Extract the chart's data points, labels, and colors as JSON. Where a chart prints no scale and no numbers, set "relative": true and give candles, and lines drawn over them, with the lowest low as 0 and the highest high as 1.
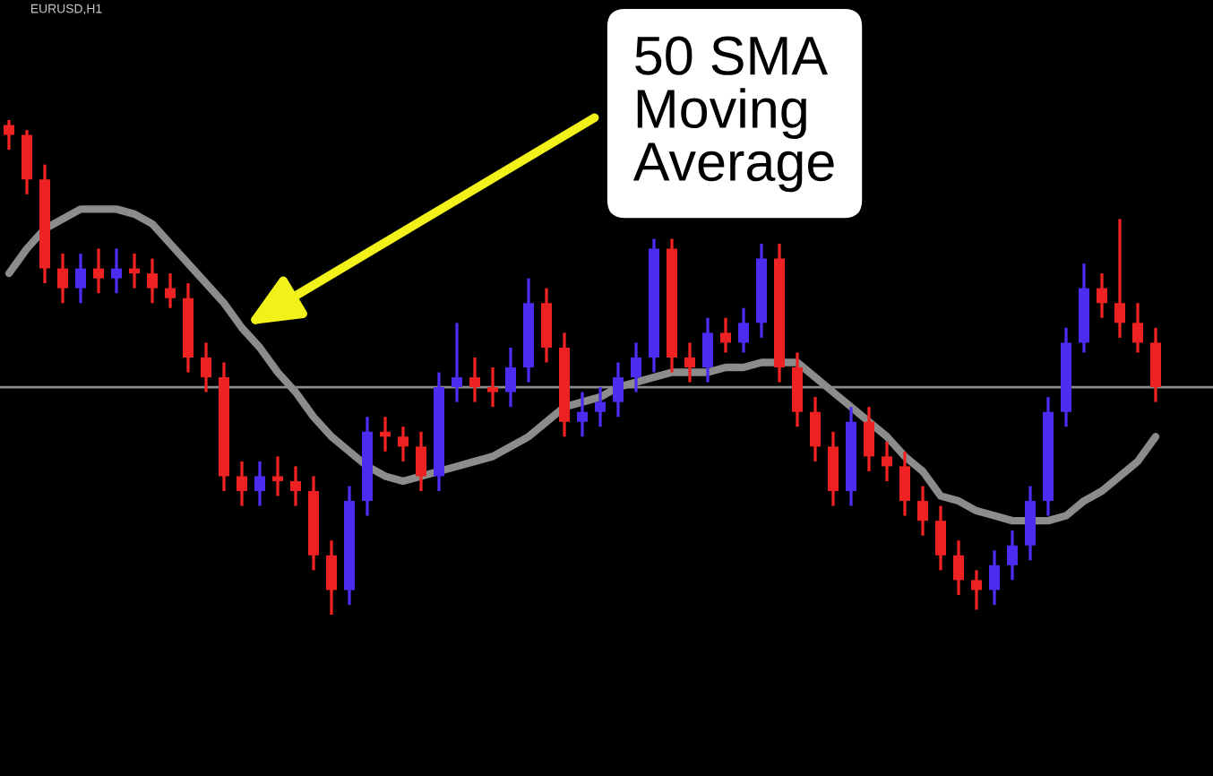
{
  "chart_data": {
    "type": "candlestick",
    "relative": true,
    "title": "EURUSD,H1",
    "grid": false,
    "legend": false,
    "colors": [
      "#ee2222",
      "#ee2222",
      "#ee2222",
      "#ee2222",
      "#4b2cf0",
      "#ee2222",
      "#4b2cf0",
      "#ee2222",
      "#ee2222",
      "#ee2222",
      "#ee2222",
      "#ee2222",
      "#ee2222",
      "#ee2222",
      "#4b2cf0",
      "#ee2222",
      "#ee2222",
      "#ee2222",
      "#ee2222",
      "#4b2cf0",
      "#4b2cf0",
      "#ee2222",
      "#ee2222",
      "#ee2222",
      "#4b2cf0",
      "#4b2cf0",
      "#ee2222",
      "#ee2222",
      "#4b2cf0",
      "#4b2cf0",
      "#ee2222",
      "#ee2222",
      "#4b2cf0",
      "#4b2cf0",
      "#4b2cf0",
      "#4b2cf0",
      "#4b2cf0",
      "#ee2222",
      "#ee2222",
      "#4b2cf0",
      "#ee2222",
      "#4b2cf0",
      "#4b2cf0",
      "#ee2222",
      "#ee2222",
      "#ee2222",
      "#ee2222",
      "#4b2cf0",
      "#ee2222",
      "#ee2222",
      "#ee2222",
      "#ee2222",
      "#ee2222",
      "#ee2222",
      "#ee2222",
      "#4b2cf0",
      "#4b2cf0",
      "#4b2cf0",
      "#4b2cf0",
      "#4b2cf0",
      "#4b2cf0",
      "#ee2222",
      "#ee2222",
      "#ee2222",
      "#ee2222"
    ],
    "categories": [
      null,
      null,
      null,
      null,
      null,
      null,
      null,
      null,
      null,
      null,
      null,
      null,
      null,
      null,
      null,
      null,
      null,
      null,
      null,
      null,
      null,
      null,
      null,
      null,
      null,
      null,
      null,
      null,
      null,
      null,
      null,
      null,
      null,
      null,
      null,
      null,
      null,
      null,
      null,
      null,
      null,
      null,
      null,
      null,
      null,
      null,
      null,
      null,
      null,
      null,
      null,
      null,
      null,
      null,
      null,
      null,
      null,
      null,
      null,
      null,
      null,
      null,
      null,
      null,
      null
    ],
    "ohlc": [
      [
        0.99,
        1.0,
        0.94,
        0.97
      ],
      [
        0.97,
        0.98,
        0.85,
        0.88
      ],
      [
        0.88,
        0.91,
        0.67,
        0.7
      ],
      [
        0.7,
        0.73,
        0.63,
        0.66
      ],
      [
        0.66,
        0.73,
        0.63,
        0.7
      ],
      [
        0.7,
        0.74,
        0.65,
        0.68
      ],
      [
        0.68,
        0.74,
        0.65,
        0.7
      ],
      [
        0.7,
        0.73,
        0.66,
        0.69
      ],
      [
        0.69,
        0.72,
        0.63,
        0.66
      ],
      [
        0.66,
        0.69,
        0.62,
        0.64
      ],
      [
        0.64,
        0.67,
        0.49,
        0.52
      ],
      [
        0.52,
        0.55,
        0.45,
        0.48
      ],
      [
        0.48,
        0.51,
        0.25,
        0.28
      ],
      [
        0.28,
        0.31,
        0.22,
        0.25
      ],
      [
        0.25,
        0.31,
        0.22,
        0.28
      ],
      [
        0.28,
        0.32,
        0.24,
        0.27
      ],
      [
        0.27,
        0.3,
        0.22,
        0.25
      ],
      [
        0.25,
        0.28,
        0.09,
        0.12
      ],
      [
        0.12,
        0.15,
        0.0,
        0.05
      ],
      [
        0.05,
        0.26,
        0.02,
        0.23
      ],
      [
        0.23,
        0.4,
        0.2,
        0.37
      ],
      [
        0.37,
        0.4,
        0.33,
        0.36
      ],
      [
        0.36,
        0.38,
        0.31,
        0.34
      ],
      [
        0.34,
        0.37,
        0.25,
        0.28
      ],
      [
        0.28,
        0.49,
        0.25,
        0.46
      ],
      [
        0.46,
        0.59,
        0.43,
        0.48
      ],
      [
        0.48,
        0.52,
        0.43,
        0.46
      ],
      [
        0.46,
        0.5,
        0.42,
        0.45
      ],
      [
        0.45,
        0.54,
        0.42,
        0.5
      ],
      [
        0.5,
        0.68,
        0.47,
        0.63
      ],
      [
        0.63,
        0.66,
        0.51,
        0.54
      ],
      [
        0.54,
        0.57,
        0.36,
        0.39
      ],
      [
        0.39,
        0.45,
        0.36,
        0.41
      ],
      [
        0.41,
        0.46,
        0.38,
        0.43
      ],
      [
        0.43,
        0.51,
        0.4,
        0.48
      ],
      [
        0.48,
        0.55,
        0.45,
        0.52
      ],
      [
        0.52,
        0.76,
        0.49,
        0.74
      ],
      [
        0.74,
        0.76,
        0.49,
        0.52
      ],
      [
        0.52,
        0.55,
        0.47,
        0.5
      ],
      [
        0.5,
        0.6,
        0.47,
        0.57
      ],
      [
        0.57,
        0.6,
        0.53,
        0.55
      ],
      [
        0.55,
        0.62,
        0.53,
        0.59
      ],
      [
        0.59,
        0.75,
        0.56,
        0.72
      ],
      [
        0.72,
        0.75,
        0.47,
        0.5
      ],
      [
        0.5,
        0.53,
        0.38,
        0.41
      ],
      [
        0.41,
        0.44,
        0.31,
        0.34
      ],
      [
        0.34,
        0.37,
        0.22,
        0.25
      ],
      [
        0.25,
        0.42,
        0.22,
        0.39
      ],
      [
        0.39,
        0.42,
        0.29,
        0.32
      ],
      [
        0.32,
        0.35,
        0.27,
        0.3
      ],
      [
        0.3,
        0.33,
        0.2,
        0.23
      ],
      [
        0.23,
        0.26,
        0.16,
        0.19
      ],
      [
        0.19,
        0.22,
        0.09,
        0.12
      ],
      [
        0.12,
        0.15,
        0.04,
        0.07
      ],
      [
        0.07,
        0.09,
        0.01,
        0.05
      ],
      [
        0.05,
        0.13,
        0.02,
        0.1
      ],
      [
        0.1,
        0.17,
        0.07,
        0.14
      ],
      [
        0.14,
        0.26,
        0.11,
        0.23
      ],
      [
        0.23,
        0.44,
        0.2,
        0.41
      ],
      [
        0.41,
        0.58,
        0.38,
        0.55
      ],
      [
        0.55,
        0.71,
        0.53,
        0.66
      ],
      [
        0.66,
        0.69,
        0.6,
        0.63
      ],
      [
        0.63,
        0.8,
        0.56,
        0.59
      ],
      [
        0.59,
        0.63,
        0.53,
        0.55
      ],
      [
        0.55,
        0.58,
        0.43,
        0.46
      ]
    ],
    "series": [
      {
        "type": "line",
        "color": "#8c8c8c",
        "values": [
          0.69,
          0.74,
          0.78,
          0.8,
          0.82,
          0.82,
          0.82,
          0.81,
          0.79,
          0.75,
          0.71,
          0.67,
          0.63,
          0.58,
          0.54,
          0.49,
          0.45,
          0.4,
          0.36,
          0.33,
          0.3,
          0.28,
          0.27,
          0.28,
          0.29,
          0.3,
          0.31,
          0.32,
          0.34,
          0.36,
          0.39,
          0.42,
          0.43,
          0.44,
          0.46,
          0.47,
          0.48,
          0.49,
          0.49,
          0.49,
          0.5,
          0.5,
          0.51,
          0.51,
          0.51,
          0.48,
          0.45,
          0.42,
          0.39,
          0.36,
          0.32,
          0.29,
          0.24,
          0.23,
          0.21,
          0.2,
          0.19,
          0.19,
          0.19,
          0.2,
          0.23,
          0.25,
          0.28,
          0.31,
          0.36
        ]
      }
    ],
    "ref_lines": [
      {
        "axis": "y",
        "value": 0.46,
        "color": "#8c8c8c"
      }
    ],
    "annotations": [
      "50 SMA\nMoving\nAverage"
    ]
  }
}
